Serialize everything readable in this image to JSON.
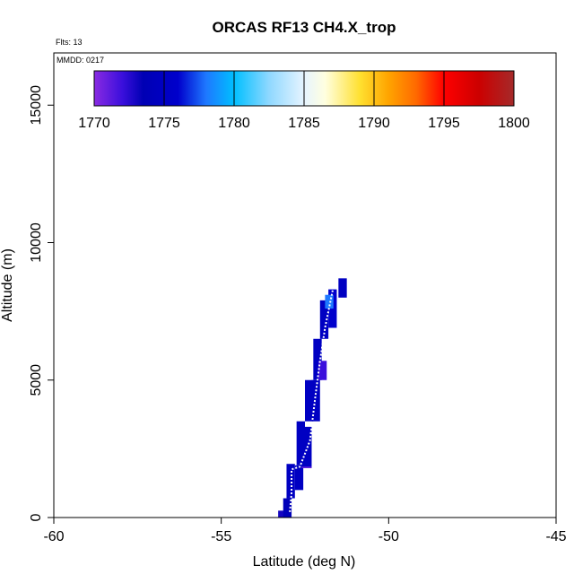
{
  "chart_data": {
    "type": "scatter",
    "title": "ORCAS RF13 CH4.X_trop",
    "note_flights": "Flts: 13",
    "note_date": "MMDD: 0217",
    "xlabel": "Latitude (deg N)",
    "ylabel": "Altitude (m)",
    "xlim": [
      -60,
      -45
    ],
    "ylim": [
      0,
      16500
    ],
    "x_ticks": [
      -60,
      -55,
      -50,
      -45
    ],
    "x_tick_labels": [
      "-60",
      "-55",
      "-50",
      "-45"
    ],
    "y_ticks": [
      0,
      5000,
      10000,
      15000
    ],
    "y_tick_labels": [
      "0",
      "5000",
      "10000",
      "15000"
    ],
    "grid": false,
    "colorbar": {
      "range": [
        1770,
        1800
      ],
      "ticks": [
        1770,
        1775,
        1780,
        1785,
        1790,
        1795,
        1800
      ],
      "tick_labels": [
        "1770",
        "1775",
        "1780",
        "1785",
        "1790",
        "1795",
        "1800"
      ],
      "stops": [
        {
          "value": 1770,
          "color": "#8a2be2"
        },
        {
          "value": 1772,
          "color": "#3b0fdc"
        },
        {
          "value": 1773.5,
          "color": "#0000b4"
        },
        {
          "value": 1776,
          "color": "#0000cc"
        },
        {
          "value": 1778,
          "color": "#1e78ff"
        },
        {
          "value": 1780,
          "color": "#00bfff"
        },
        {
          "value": 1782.5,
          "color": "#8fd8ff"
        },
        {
          "value": 1785,
          "color": "#e6f4ff"
        },
        {
          "value": 1786.5,
          "color": "#ffffe0"
        },
        {
          "value": 1789,
          "color": "#ffe030"
        },
        {
          "value": 1791,
          "color": "#ffa500"
        },
        {
          "value": 1793,
          "color": "#ff6a00"
        },
        {
          "value": 1795,
          "color": "#ff0000"
        },
        {
          "value": 1797.5,
          "color": "#cc0000"
        },
        {
          "value": 1800,
          "color": "#a52a2a"
        }
      ]
    },
    "blocks": [
      {
        "lat0": -53.3,
        "lat1": -53.05,
        "alt0": 0,
        "alt1": 250,
        "ch4": 1773.0
      },
      {
        "lat0": -53.15,
        "lat1": -52.9,
        "alt0": 0,
        "alt1": 700,
        "ch4": 1774.0
      },
      {
        "lat0": -53.05,
        "lat1": -52.8,
        "alt0": 700,
        "alt1": 1950,
        "ch4": 1775.0
      },
      {
        "lat0": -52.8,
        "lat1": -52.55,
        "alt0": 1000,
        "alt1": 1900,
        "ch4": 1775.0
      },
      {
        "lat0": -52.75,
        "lat1": -52.5,
        "alt0": 1900,
        "alt1": 3500,
        "ch4": 1775.0
      },
      {
        "lat0": -52.6,
        "lat1": -52.3,
        "alt0": 1800,
        "alt1": 3300,
        "ch4": 1775.0
      },
      {
        "lat0": -52.6,
        "lat1": -52.3,
        "alt0": 1800,
        "alt1": 1850,
        "ch4": 1771.0
      },
      {
        "lat0": -52.5,
        "lat1": -52.25,
        "alt0": 3500,
        "alt1": 5000,
        "ch4": 1775.0
      },
      {
        "lat0": -52.3,
        "lat1": -52.05,
        "alt0": 3500,
        "alt1": 5000,
        "ch4": 1775.0
      },
      {
        "lat0": -52.25,
        "lat1": -52.0,
        "alt0": 5000,
        "alt1": 6500,
        "ch4": 1775.0
      },
      {
        "lat0": -52.1,
        "lat1": -51.85,
        "alt0": 5000,
        "alt1": 5700,
        "ch4": 1772.0
      },
      {
        "lat0": -52.05,
        "lat1": -51.8,
        "alt0": 6500,
        "alt1": 7900,
        "ch4": 1775.0
      },
      {
        "lat0": -51.8,
        "lat1": -51.55,
        "alt0": 6900,
        "alt1": 8300,
        "ch4": 1776.0
      },
      {
        "lat0": -51.9,
        "lat1": -51.65,
        "alt0": 7600,
        "alt1": 8100,
        "ch4": 1778.0
      },
      {
        "lat0": -51.5,
        "lat1": -51.25,
        "alt0": 8000,
        "alt1": 8700,
        "ch4": 1775.0
      }
    ],
    "track": [
      {
        "lat": -52.95,
        "alt": 200
      },
      {
        "lat": -52.9,
        "alt": 900
      },
      {
        "lat": -52.9,
        "alt": 1750
      },
      {
        "lat": -52.65,
        "alt": 1850
      },
      {
        "lat": -52.35,
        "alt": 2800
      },
      {
        "lat": -52.2,
        "alt": 4300
      },
      {
        "lat": -52.05,
        "alt": 5700
      },
      {
        "lat": -51.9,
        "alt": 6900
      },
      {
        "lat": -51.75,
        "alt": 7800
      },
      {
        "lat": -51.65,
        "alt": 8400
      }
    ]
  }
}
